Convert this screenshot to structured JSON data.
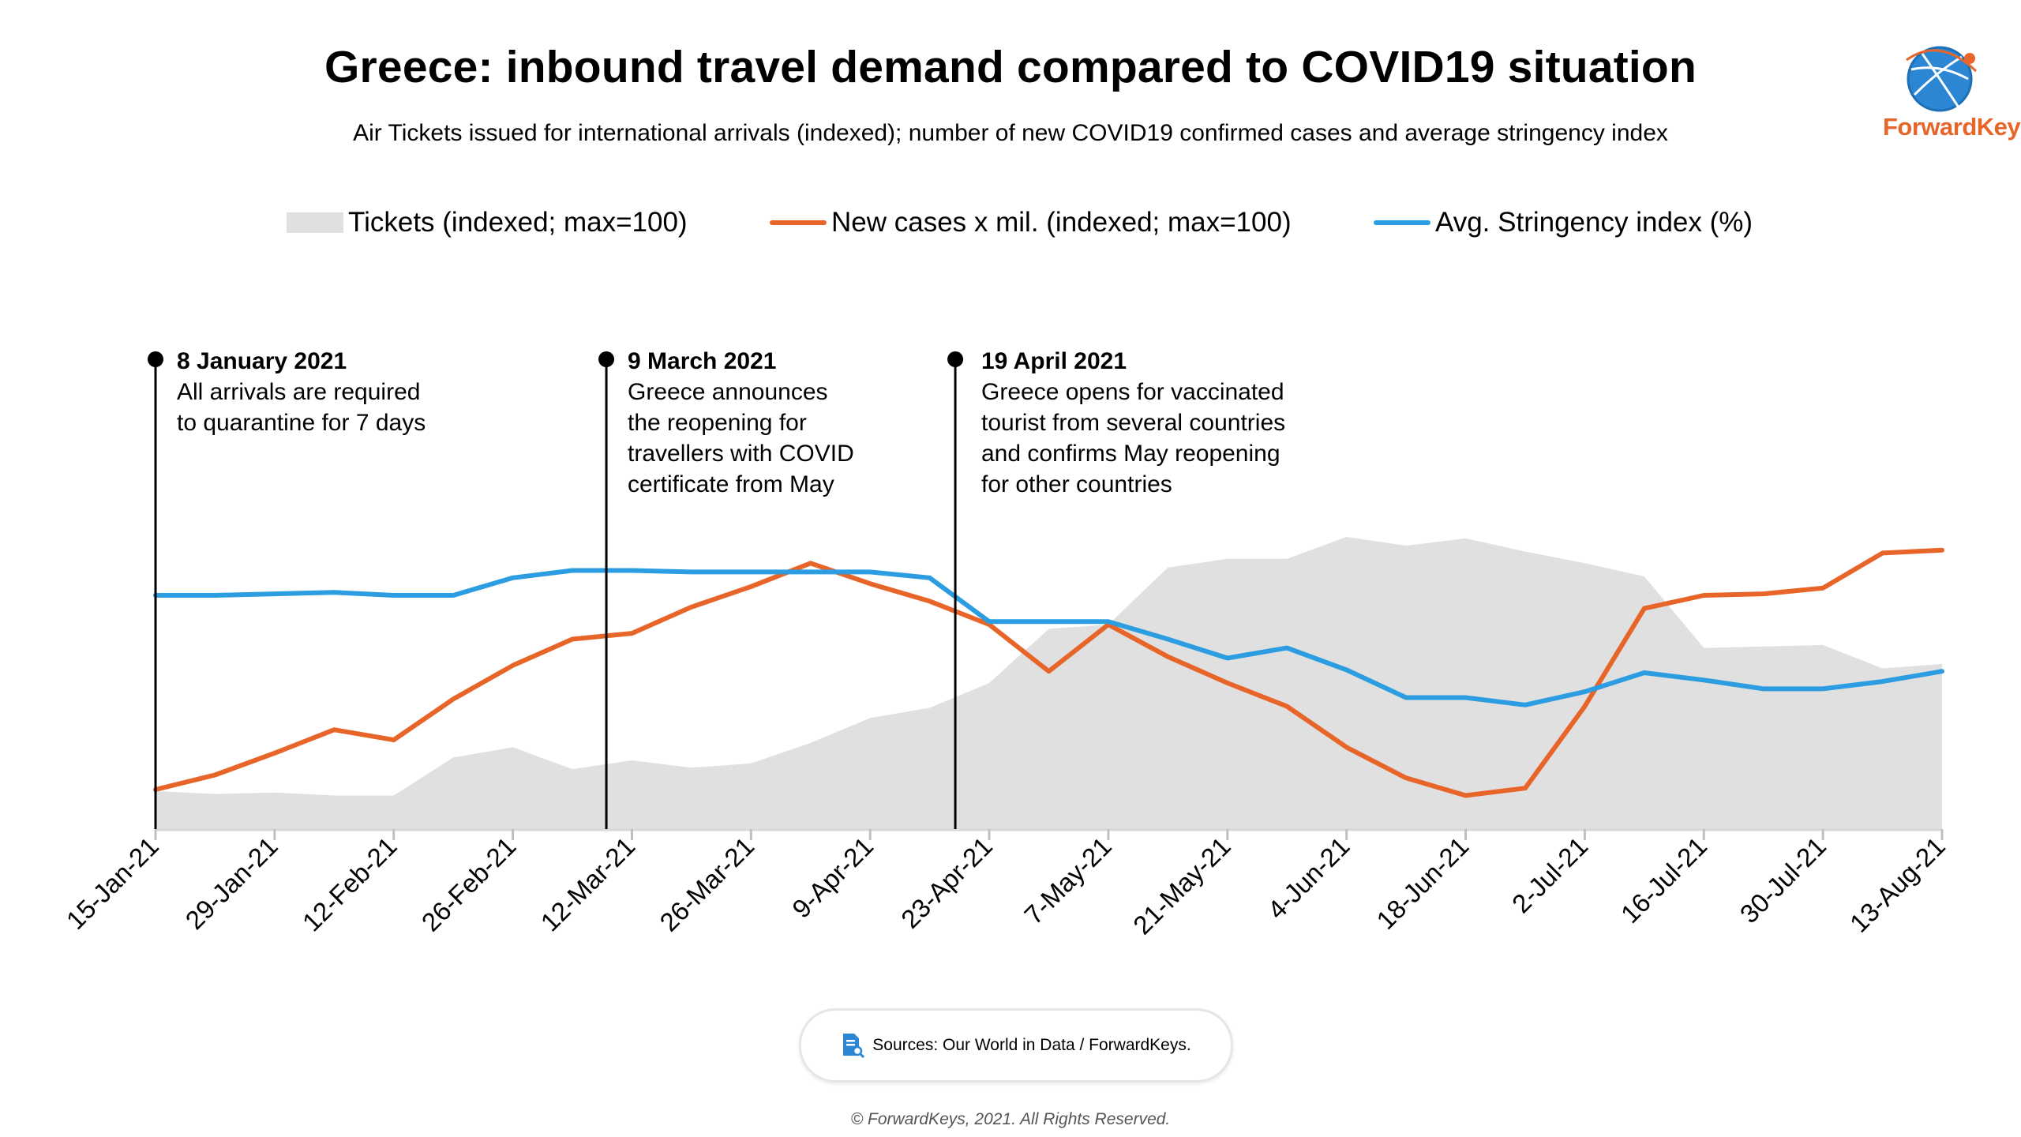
{
  "title": "Greece: inbound travel demand compared to COVID19 situation",
  "subtitle": "Air Tickets issued for international arrivals (indexed); number of new COVID19 confirmed cases and average stringency index",
  "logo": {
    "brand": "ForwardKeys",
    "icon": "globe-icon"
  },
  "legend": {
    "tickets": "Tickets (indexed; max=100)",
    "cases": "New cases x mil. (indexed; max=100)",
    "stringency": "Avg. Stringency index (%)"
  },
  "annotations": [
    {
      "date": "8 January 2021",
      "lines": [
        "All arrivals are required",
        "to quarantine for 7 days"
      ]
    },
    {
      "date": "9 March 2021",
      "lines": [
        "Greece announces",
        "the reopening for",
        "travellers with COVID",
        "certificate from May"
      ]
    },
    {
      "date": "19 April 2021",
      "lines": [
        "Greece opens for vaccinated",
        "tourist from several countries",
        "and confirms May reopening",
        "for other countries"
      ]
    }
  ],
  "source": {
    "icon": "document-search-icon",
    "text": "Sources: Our World in Data / ForwardKeys."
  },
  "copyright": "© ForwardKeys, 2021. All Rights Reserved.",
  "chart_data": {
    "type": "line",
    "title": "Greece: inbound travel demand compared to COVID19 situation",
    "xlabel": "",
    "ylabel": "",
    "x_ticks": [
      "15-Jan-21",
      "29-Jan-21",
      "12-Feb-21",
      "26-Feb-21",
      "12-Mar-21",
      "26-Mar-21",
      "9-Apr-21",
      "23-Apr-21",
      "7-May-21",
      "21-May-21",
      "4-Jun-21",
      "18-Jun-21",
      "2-Jul-21",
      "16-Jul-21",
      "30-Jul-21",
      "13-Aug-21"
    ],
    "x_weeks": 30,
    "ylim": [
      0,
      100
    ],
    "grid": false,
    "legend_position": "top",
    "series": [
      {
        "name": "Tickets (indexed; max=100)",
        "kind": "area",
        "color": "#e0e0e0",
        "values": [
          13,
          12,
          12.5,
          11.5,
          11.5,
          24.5,
          28,
          20.5,
          23.5,
          21,
          22.5,
          29.5,
          38,
          41.5,
          50,
          68.5,
          70,
          89.5,
          92.5,
          92.5,
          100,
          97,
          99.5,
          95,
          91,
          86.5,
          62,
          62.5,
          63,
          55,
          56.5
        ]
      },
      {
        "name": "New cases x mil. (indexed; max=100)",
        "kind": "line",
        "color": "#e8652a",
        "values": [
          13.5,
          18.5,
          26,
          34,
          30.5,
          44.5,
          56,
          65,
          67,
          76,
          83,
          91,
          84,
          78,
          70,
          54,
          70,
          59,
          50,
          42,
          28,
          17.5,
          11.5,
          14,
          42,
          75.5,
          80,
          80.5,
          82.5,
          94.5,
          95.5
        ]
      },
      {
        "name": "Avg. Stringency index (%)",
        "kind": "line",
        "color": "#2b9de0",
        "values": [
          80,
          80,
          80.5,
          81,
          80,
          80,
          86,
          88.5,
          88.5,
          88,
          88,
          88,
          88,
          86,
          71,
          71,
          71,
          65,
          58.5,
          62,
          54.5,
          45,
          45,
          42.5,
          47,
          53.5,
          51,
          48,
          48,
          50.5,
          54
        ]
      }
    ],
    "events": [
      {
        "label": "8 January 2021",
        "week": 0
      },
      {
        "label": "9 March 2021",
        "week": 7.57
      },
      {
        "label": "19 April 2021",
        "week": 13.43
      }
    ]
  }
}
